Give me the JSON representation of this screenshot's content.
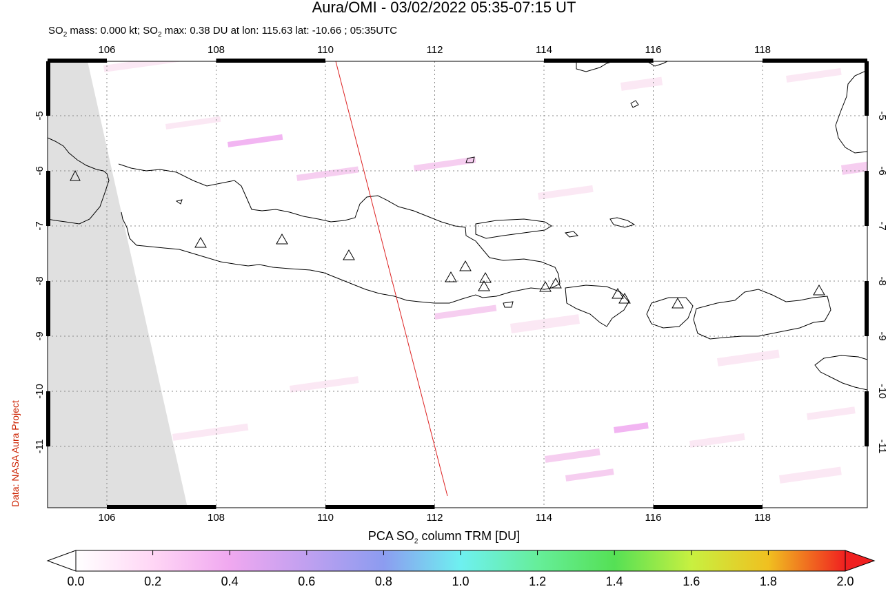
{
  "header": {
    "title": "Aura/OMI - 03/02/2022 05:35-07:15 UT",
    "subtitle_prefix": "SO",
    "subtitle_sub": "2",
    "subtitle_mid": " mass: 0.000 kt; SO",
    "subtitle_rest": " max: 0.38 DU at lon: 115.63 lat: -10.66 ; 05:35UTC"
  },
  "side_label": "Data: NASA Aura Project",
  "map": {
    "lon_range": [
      105,
      120
    ],
    "lat_range": [
      -12.1,
      -3.9
    ],
    "lon_ticks": [
      "106",
      "108",
      "110",
      "112",
      "114",
      "116",
      "118"
    ],
    "lat_ticks": [
      "-5",
      "-6",
      "-7",
      "-8",
      "-9",
      "-10",
      "-11"
    ],
    "grid": true,
    "grid_style": "dotted"
  },
  "colorbar": {
    "title_prefix": "PCA SO",
    "title_sub": "2",
    "title_suffix": " column TRM [DU]",
    "labels": [
      "0.0",
      "0.2",
      "0.4",
      "0.6",
      "0.8",
      "1.0",
      "1.2",
      "1.4",
      "1.6",
      "1.8",
      "2.0"
    ],
    "range": [
      0.0,
      2.0
    ],
    "colors": [
      "#ffffff",
      "#ffd6f5",
      "#f0a8f0",
      "#b7a0f0",
      "#8c9cf0",
      "#6ef0f0",
      "#66ee9a",
      "#55e055",
      "#c8f040",
      "#f0c020",
      "#f05010",
      "#f02020"
    ]
  }
}
